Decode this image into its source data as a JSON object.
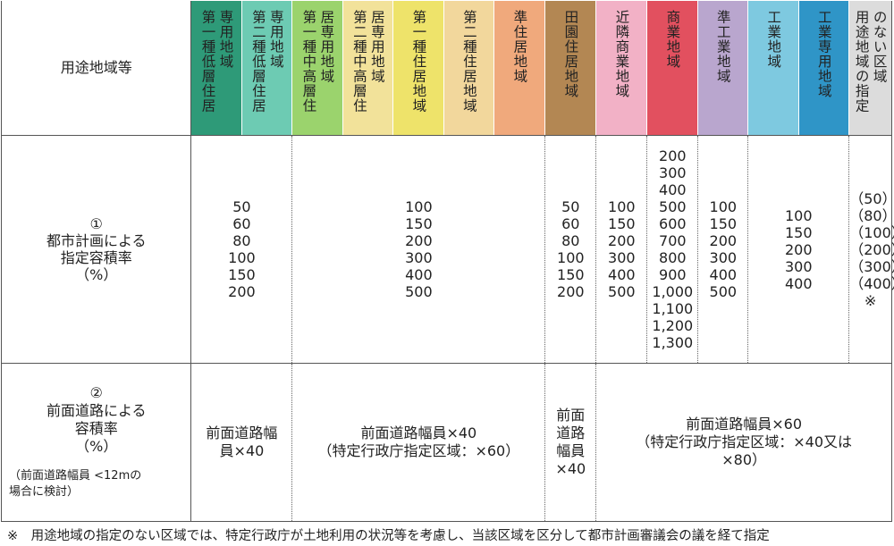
{
  "header": {
    "label": "用途地域等",
    "zones": [
      {
        "name": "第一種低層住居専用地域",
        "col1": "第一種低層住居",
        "col2": "専用地域",
        "color": "#2e9a78"
      },
      {
        "name": "第二種低層住居専用地域",
        "col1": "第二種低層住居",
        "col2": "専用地域",
        "color": "#6dcbb3"
      },
      {
        "name": "第一種中高層住居専用地域",
        "col1": "第一種中高層住",
        "col2": "居専用地域",
        "color": "#9bd36d"
      },
      {
        "name": "第二種中高層住居専用地域",
        "col1": "第二種中高層住",
        "col2": "居専用地域",
        "color": "#f2e29a"
      },
      {
        "name": "第一種住居地域",
        "col1": "第一種住居地域",
        "col2": "",
        "color": "#eee36a"
      },
      {
        "name": "第二種住居地域",
        "col1": "第二種住居地域",
        "col2": "",
        "color": "#f2d79c"
      },
      {
        "name": "準住居地域",
        "col1": "準住居地域",
        "col2": "",
        "color": "#f0a97c"
      },
      {
        "name": "田園住居地域",
        "col1": "田園住居地域",
        "col2": "",
        "color": "#b38753"
      },
      {
        "name": "近隣商業地域",
        "col1": "近隣商業地域",
        "col2": "",
        "color": "#f2b1c6"
      },
      {
        "name": "商業地域",
        "col1": "商業地域",
        "col2": "",
        "color": "#e2505f"
      },
      {
        "name": "準工業地域",
        "col1": "準工業地域",
        "col2": "",
        "color": "#b9a6ce"
      },
      {
        "name": "工業地域",
        "col1": "工業地域",
        "col2": "",
        "color": "#7ec9e0"
      },
      {
        "name": "工業専用地域",
        "col1": "工業専用地域",
        "col2": "",
        "color": "#2f95c7"
      },
      {
        "name": "用途地域の指定のない区域",
        "col1": "用途地域の指定",
        "col2": "のない区域",
        "color": "#dcdcdc"
      }
    ]
  },
  "row1": {
    "label_line1": "①",
    "label_line2": "都市計画による",
    "label_line3": "指定容積率",
    "label_line4": "（%）",
    "g1": [
      "50",
      "60",
      "80",
      "100",
      "150",
      "200"
    ],
    "g2": [
      "100",
      "150",
      "200",
      "300",
      "400",
      "500"
    ],
    "g3": [
      "50",
      "60",
      "80",
      "100",
      "150",
      "200"
    ],
    "g4": [
      "100",
      "150",
      "200",
      "300",
      "400",
      "500"
    ],
    "g5": [
      "200",
      "300",
      "400",
      "500",
      "600",
      "700",
      "800",
      "900",
      "1,000",
      "1,100",
      "1,200",
      "1,300"
    ],
    "g6": [
      "100",
      "150",
      "200",
      "300",
      "400",
      "500"
    ],
    "g7": [
      "100",
      "150",
      "200",
      "300",
      "400"
    ],
    "g8": [
      "（50）",
      "（80）",
      "（100）",
      "（200）",
      "（300）",
      "（400）",
      "※"
    ]
  },
  "row2": {
    "label_line1": "②",
    "label_line2": "前面道路による",
    "label_line3": "容積率",
    "label_line4": "（%）",
    "label_sub1": "（前面道路幅員 <12mの",
    "label_sub2": "場合に検討）",
    "g1_line1": "前面道路幅",
    "g1_line2": "員×40",
    "g2_line1": "前面道路幅員×40",
    "g2_line2": "（特定行政庁指定区域：×60）",
    "g3": [
      "前面",
      "道路",
      "幅員",
      "×40"
    ],
    "g4_line1": "前面道路幅員×60",
    "g4_line2": "（特定行政庁指定区域：×40又は",
    "g4_line3": "×80）"
  },
  "note": "※　用途地域の指定のない区域では、特定行政庁が土地利用の状況等を考慮し、当該区域を区分して都市計画審議会の議を経て指定"
}
